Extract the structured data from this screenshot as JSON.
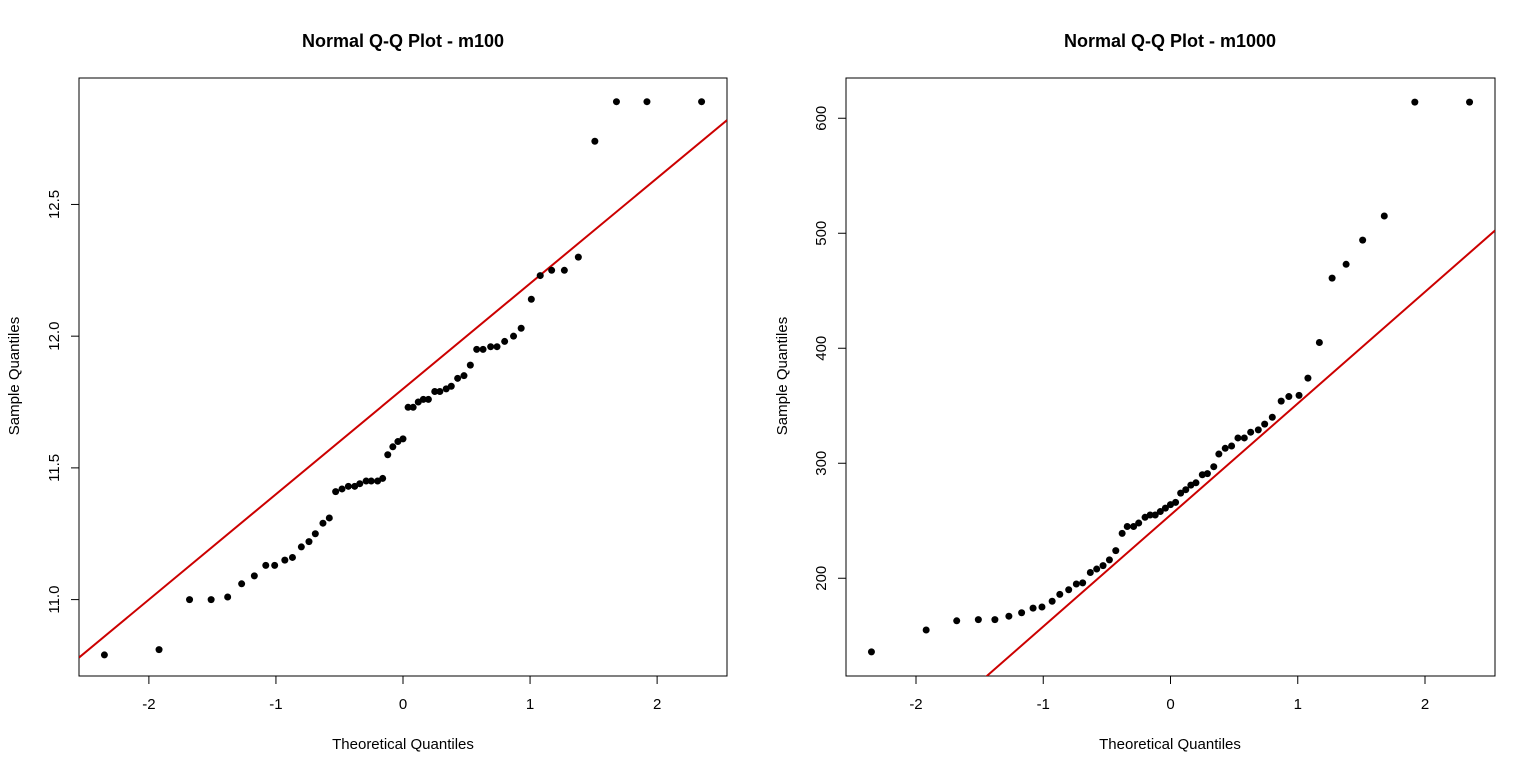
{
  "colors": {
    "points": "#000000",
    "reference_line": "#cc0000",
    "background": "#ffffff"
  },
  "chart_data": [
    {
      "type": "scatter",
      "title": "Normal Q-Q Plot - m100",
      "xlabel": "Theoretical Quantiles",
      "ylabel": "Sample Quantiles",
      "xlim": [
        -2.55,
        2.55
      ],
      "ylim": [
        10.71,
        12.98
      ],
      "xticks": [
        -2,
        -1,
        0,
        1,
        2
      ],
      "xtick_labels": [
        "-2",
        "-1",
        "0",
        "1",
        "2"
      ],
      "yticks": [
        11.0,
        11.5,
        12.0,
        12.5
      ],
      "ytick_labels": [
        "11.0",
        "11.5",
        "12.0",
        "12.5"
      ],
      "grid": false,
      "reference_line": {
        "slope": 0.4,
        "intercept": 11.8
      },
      "x": [
        -2.35,
        -1.92,
        -1.68,
        -1.51,
        -1.38,
        -1.27,
        -1.17,
        -1.08,
        -1.01,
        -0.93,
        -0.87,
        -0.8,
        -0.74,
        -0.69,
        -0.63,
        -0.58,
        -0.53,
        -0.48,
        -0.43,
        -0.38,
        -0.34,
        -0.29,
        -0.25,
        -0.2,
        -0.16,
        -0.12,
        -0.08,
        -0.04,
        0.0,
        0.04,
        0.08,
        0.12,
        0.16,
        0.2,
        0.25,
        0.29,
        0.34,
        0.38,
        0.43,
        0.48,
        0.53,
        0.58,
        0.63,
        0.69,
        0.74,
        0.8,
        0.87,
        0.93,
        1.01,
        1.08,
        1.17,
        1.27,
        1.38,
        1.51,
        1.68,
        1.92,
        2.35
      ],
      "y": [
        10.79,
        10.81,
        11.0,
        11.0,
        11.01,
        11.06,
        11.09,
        11.13,
        11.13,
        11.15,
        11.16,
        11.2,
        11.22,
        11.25,
        11.29,
        11.31,
        11.41,
        11.42,
        11.43,
        11.43,
        11.44,
        11.45,
        11.45,
        11.45,
        11.46,
        11.55,
        11.58,
        11.6,
        11.61,
        11.73,
        11.73,
        11.75,
        11.76,
        11.76,
        11.79,
        11.79,
        11.8,
        11.81,
        11.84,
        11.85,
        11.89,
        11.95,
        11.95,
        11.96,
        11.96,
        11.98,
        12.0,
        12.03,
        12.14,
        12.23,
        12.25,
        12.25,
        12.3,
        12.74,
        12.89,
        12.89,
        12.89
      ]
    },
    {
      "type": "scatter",
      "title": "Normal Q-Q Plot - m1000",
      "xlabel": "Theoretical Quantiles",
      "ylabel": "Sample Quantiles",
      "xlim": [
        -2.55,
        2.55
      ],
      "ylim": [
        115,
        635
      ],
      "xticks": [
        -2,
        -1,
        0,
        1,
        2
      ],
      "xtick_labels": [
        "-2",
        "-1",
        "0",
        "1",
        "2"
      ],
      "yticks": [
        200,
        300,
        400,
        500,
        600
      ],
      "ytick_labels": [
        "200",
        "300",
        "400",
        "500",
        "600"
      ],
      "grid": false,
      "reference_line": {
        "slope": 97,
        "intercept": 255
      },
      "x": [
        -2.35,
        -1.92,
        -1.68,
        -1.51,
        -1.38,
        -1.27,
        -1.17,
        -1.08,
        -1.01,
        -0.93,
        -0.87,
        -0.8,
        -0.74,
        -0.69,
        -0.63,
        -0.58,
        -0.53,
        -0.48,
        -0.43,
        -0.38,
        -0.34,
        -0.29,
        -0.25,
        -0.2,
        -0.16,
        -0.12,
        -0.08,
        -0.04,
        0.0,
        0.04,
        0.08,
        0.12,
        0.16,
        0.2,
        0.25,
        0.29,
        0.34,
        0.38,
        0.43,
        0.48,
        0.53,
        0.58,
        0.63,
        0.69,
        0.74,
        0.8,
        0.87,
        0.93,
        1.01,
        1.08,
        1.17,
        1.27,
        1.38,
        1.51,
        1.68,
        1.92,
        2.35
      ],
      "y": [
        136,
        155,
        163,
        164,
        164,
        167,
        170,
        174,
        175,
        180,
        186,
        190,
        195,
        196,
        205,
        208,
        211,
        216,
        224,
        239,
        245,
        245,
        248,
        253,
        255,
        255,
        258,
        261,
        264,
        266,
        274,
        277,
        281,
        283,
        290,
        291,
        297,
        308,
        313,
        315,
        322,
        322,
        327,
        329,
        334,
        340,
        354,
        358,
        359,
        374,
        405,
        461,
        473,
        494,
        515,
        614,
        614
      ]
    }
  ]
}
